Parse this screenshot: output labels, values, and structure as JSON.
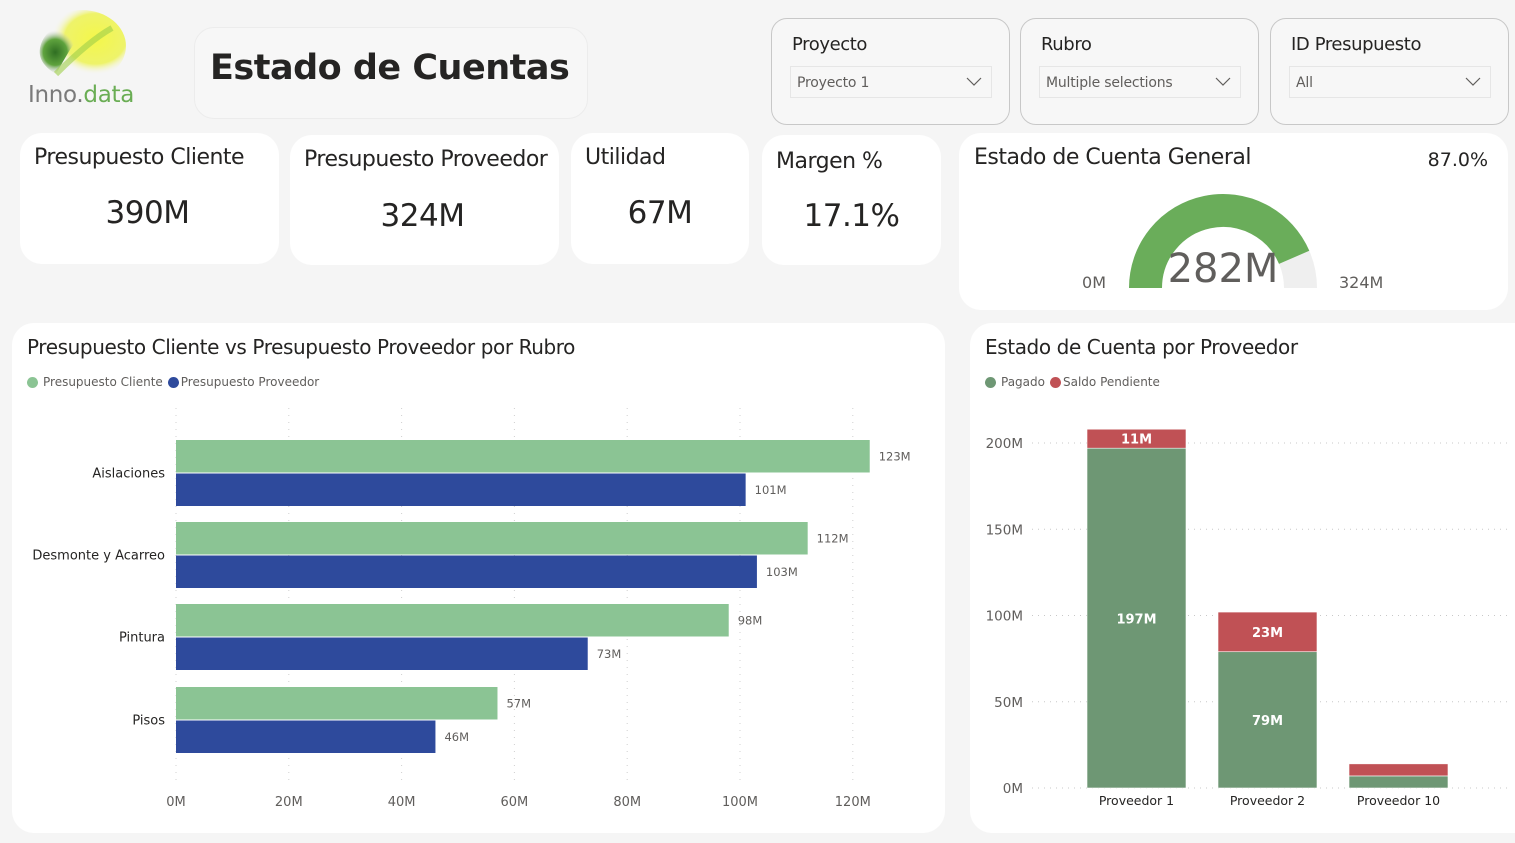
{
  "logo": {
    "text_part1": "Inno.",
    "text_part2": "data"
  },
  "header": {
    "title": "Estado de Cuentas"
  },
  "slicers": [
    {
      "label": "Proyecto",
      "value": "Proyecto 1"
    },
    {
      "label": "Rubro",
      "value": "Multiple selections"
    },
    {
      "label": "ID Presupuesto",
      "value": "All"
    }
  ],
  "kpis": [
    {
      "label": "Presupuesto Cliente",
      "value": "390M"
    },
    {
      "label": "Presupuesto Proveedor",
      "value": "324M"
    },
    {
      "label": "Utilidad",
      "value": "67M"
    },
    {
      "label": "Margen %",
      "value": "17.1%"
    }
  ],
  "gauge": {
    "title": "Estado de Cuenta General",
    "percent_label": "87.0%",
    "value_label": "282M",
    "min_label": "0M",
    "max_label": "324M",
    "value": 282,
    "min": 0,
    "max": 324,
    "fill_color": "#6aad5a",
    "track_color": "#efefef"
  },
  "chart_data": [
    {
      "type": "bar",
      "orientation": "horizontal",
      "title": "Presupuesto Cliente vs Presupuesto Proveedor por Rubro",
      "categories": [
        "Aislaciones",
        "Desmonte y Acarreo",
        "Pintura",
        "Pisos"
      ],
      "series": [
        {
          "name": "Presupuesto Cliente",
          "color": "#8bc494",
          "values": [
            123,
            112,
            98,
            57
          ],
          "labels": [
            "123M",
            "112M",
            "98M",
            "57M"
          ]
        },
        {
          "name": "Presupuesto Proveedor",
          "color": "#2e4a9c",
          "values": [
            101,
            103,
            73,
            46
          ],
          "labels": [
            "101M",
            "103M",
            "73M",
            "46M"
          ]
        }
      ],
      "xlim": [
        0,
        130
      ],
      "xticks": [
        0,
        20,
        40,
        60,
        80,
        100,
        120
      ],
      "xtick_labels": [
        "0M",
        "20M",
        "40M",
        "60M",
        "80M",
        "100M",
        "120M"
      ],
      "xlabel": "",
      "ylabel": "",
      "grid": true,
      "legend": "top-left"
    },
    {
      "type": "bar",
      "orientation": "vertical",
      "stacked": true,
      "title": "Estado de Cuenta por Proveedor",
      "categories": [
        "Proveedor 1",
        "Proveedor 2",
        "Proveedor 10"
      ],
      "series": [
        {
          "name": "Pagado",
          "color": "#6e9774",
          "values": [
            197,
            79,
            7
          ],
          "labels": [
            "197M",
            "79M",
            ""
          ]
        },
        {
          "name": "Saldo Pendiente",
          "color": "#c05155",
          "values": [
            11,
            23,
            7
          ],
          "labels": [
            "11M",
            "23M",
            ""
          ]
        }
      ],
      "ylim": [
        0,
        210
      ],
      "yticks": [
        0,
        50,
        100,
        150,
        200
      ],
      "ytick_labels": [
        "0M",
        "50M",
        "100M",
        "150M",
        "200M"
      ],
      "xlabel": "",
      "ylabel": "",
      "grid": true,
      "legend": "top-left"
    }
  ]
}
